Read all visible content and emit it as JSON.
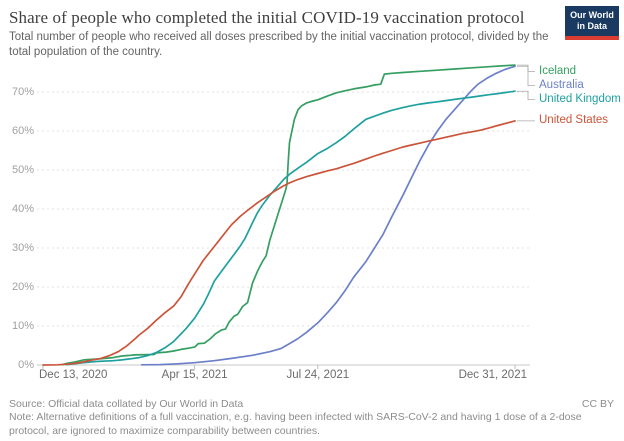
{
  "header": {
    "title": "Share of people who completed the initial COVID-19 vaccination protocol",
    "subtitle": "Total number of people who received all doses prescribed by the initial vaccination protocol, divided by the total population of the country.",
    "logo": {
      "line1": "Our World",
      "line2": "in Data",
      "bg": "#1a3a62",
      "stripe": "#dc3d33"
    }
  },
  "chart_data": {
    "type": "line",
    "title": "Share of people who completed the initial COVID-19 vaccination protocol",
    "x_unit": "days since Dec 13, 2020",
    "x_axis": {
      "ticks": [
        {
          "label": "Dec 13, 2020",
          "day": 0,
          "align": "start"
        },
        {
          "label": "Apr 15, 2021",
          "day": 123,
          "align": "middle"
        },
        {
          "label": "Jul 24, 2021",
          "day": 223,
          "align": "middle"
        },
        {
          "label": "Dec 31, 2021",
          "day": 383,
          "align": "end"
        }
      ],
      "domain_days": [
        0,
        383
      ]
    },
    "y_axis": {
      "min": 0,
      "max": 70,
      "format": "percent",
      "gridlines": "dashed",
      "ticks": [
        {
          "label": "0%",
          "value": 0
        },
        {
          "label": "10%",
          "value": 10
        },
        {
          "label": "20%",
          "value": 20
        },
        {
          "label": "30%",
          "value": 30
        },
        {
          "label": "40%",
          "value": 40
        },
        {
          "label": "50%",
          "value": 50
        },
        {
          "label": "60%",
          "value": 60
        },
        {
          "label": "70%",
          "value": 70
        }
      ]
    },
    "legend_position": "right",
    "series": [
      {
        "name": "Iceland",
        "color": "#359e61",
        "points": [
          [
            16,
            0.1
          ],
          [
            19,
            0.4
          ],
          [
            26,
            0.8
          ],
          [
            33,
            1.3
          ],
          [
            43,
            1.5
          ],
          [
            50,
            1.7
          ],
          [
            57,
            1.9
          ],
          [
            64,
            2.3
          ],
          [
            71,
            2.5
          ],
          [
            74,
            2.6
          ],
          [
            90,
            2.7
          ],
          [
            92,
            3.1
          ],
          [
            100,
            3.3
          ],
          [
            106,
            3.6
          ],
          [
            112,
            4.0
          ],
          [
            118,
            4.3
          ],
          [
            123,
            4.6
          ],
          [
            126,
            5.5
          ],
          [
            131,
            5.6
          ],
          [
            136,
            6.8
          ],
          [
            140,
            8.0
          ],
          [
            145,
            9.0
          ],
          [
            148,
            9.2
          ],
          [
            151,
            11.0
          ],
          [
            155,
            12.5
          ],
          [
            158,
            13.0
          ],
          [
            162,
            15.0
          ],
          [
            166,
            16.0
          ],
          [
            170,
            21.0
          ],
          [
            174,
            24.0
          ],
          [
            178,
            26.5
          ],
          [
            181,
            28.0
          ],
          [
            184,
            32.0
          ],
          [
            188,
            36.0
          ],
          [
            191,
            39.0
          ],
          [
            194,
            42.0
          ],
          [
            197,
            45.0
          ],
          [
            198,
            46.5
          ],
          [
            199,
            52.0
          ],
          [
            200,
            57.0
          ],
          [
            202,
            60.0
          ],
          [
            204,
            63.0
          ],
          [
            207,
            65.5
          ],
          [
            210,
            66.5
          ],
          [
            214,
            67.2
          ],
          [
            219,
            67.7
          ],
          [
            223,
            68.0
          ],
          [
            231,
            69.0
          ],
          [
            238,
            69.8
          ],
          [
            245,
            70.3
          ],
          [
            252,
            70.8
          ],
          [
            262,
            71.3
          ],
          [
            269,
            71.8
          ],
          [
            274,
            72.0
          ],
          [
            277,
            74.6
          ],
          [
            283,
            74.8
          ],
          [
            292,
            75.0
          ],
          [
            306,
            75.3
          ],
          [
            320,
            75.6
          ],
          [
            334,
            75.9
          ],
          [
            348,
            76.2
          ],
          [
            362,
            76.5
          ],
          [
            372,
            76.7
          ],
          [
            383,
            76.9
          ]
        ]
      },
      {
        "name": "Australia",
        "color": "#6b80c9",
        "points": [
          [
            80,
            0.05
          ],
          [
            95,
            0.1
          ],
          [
            109,
            0.3
          ],
          [
            123,
            0.6
          ],
          [
            139,
            1.1
          ],
          [
            153,
            1.7
          ],
          [
            170,
            2.5
          ],
          [
            184,
            3.4
          ],
          [
            193,
            4.2
          ],
          [
            200,
            5.5
          ],
          [
            207,
            6.8
          ],
          [
            214,
            8.4
          ],
          [
            223,
            10.8
          ],
          [
            231,
            13.5
          ],
          [
            238,
            16.0
          ],
          [
            245,
            19.0
          ],
          [
            252,
            22.5
          ],
          [
            262,
            26.5
          ],
          [
            269,
            30.0
          ],
          [
            276,
            33.5
          ],
          [
            283,
            38.0
          ],
          [
            292,
            43.5
          ],
          [
            299,
            48.0
          ],
          [
            306,
            52.5
          ],
          [
            313,
            56.5
          ],
          [
            320,
            60.0
          ],
          [
            327,
            63.0
          ],
          [
            334,
            65.5
          ],
          [
            341,
            68.0
          ],
          [
            348,
            70.5
          ],
          [
            353,
            72.0
          ],
          [
            360,
            73.5
          ],
          [
            367,
            74.7
          ],
          [
            375,
            75.8
          ],
          [
            383,
            76.6
          ]
        ]
      },
      {
        "name": "United Kingdom",
        "color": "#1fa0a0",
        "points": [
          [
            19,
            0.1
          ],
          [
            33,
            0.6
          ],
          [
            43,
            0.9
          ],
          [
            57,
            1.1
          ],
          [
            64,
            1.3
          ],
          [
            71,
            1.6
          ],
          [
            78,
            1.9
          ],
          [
            85,
            2.4
          ],
          [
            92,
            3.2
          ],
          [
            99,
            4.4
          ],
          [
            106,
            6.0
          ],
          [
            109,
            7.0
          ],
          [
            116,
            9.3
          ],
          [
            123,
            12.0
          ],
          [
            130,
            15.5
          ],
          [
            134,
            18.0
          ],
          [
            139,
            21.5
          ],
          [
            146,
            24.5
          ],
          [
            153,
            27.5
          ],
          [
            160,
            30.5
          ],
          [
            164,
            32.5
          ],
          [
            170,
            36.5
          ],
          [
            174,
            39.0
          ],
          [
            178,
            41.0
          ],
          [
            184,
            43.5
          ],
          [
            191,
            46.0
          ],
          [
            196,
            47.8
          ],
          [
            200,
            48.9
          ],
          [
            207,
            50.5
          ],
          [
            214,
            52.0
          ],
          [
            223,
            54.2
          ],
          [
            231,
            55.6
          ],
          [
            238,
            57.0
          ],
          [
            245,
            58.6
          ],
          [
            252,
            60.5
          ],
          [
            262,
            63.0
          ],
          [
            269,
            63.8
          ],
          [
            276,
            64.6
          ],
          [
            283,
            65.3
          ],
          [
            292,
            66.0
          ],
          [
            299,
            66.5
          ],
          [
            306,
            66.9
          ],
          [
            313,
            67.2
          ],
          [
            320,
            67.5
          ],
          [
            327,
            67.8
          ],
          [
            334,
            68.1
          ],
          [
            341,
            68.4
          ],
          [
            348,
            68.7
          ],
          [
            355,
            69.0
          ],
          [
            362,
            69.3
          ],
          [
            369,
            69.6
          ],
          [
            376,
            69.9
          ],
          [
            383,
            70.2
          ]
        ]
      },
      {
        "name": "United States",
        "color": "#cb5438",
        "points": [
          [
            0,
            0
          ],
          [
            12,
            0.05
          ],
          [
            19,
            0.2
          ],
          [
            26,
            0.4
          ],
          [
            33,
            0.8
          ],
          [
            40,
            1.3
          ],
          [
            47,
            1.7
          ],
          [
            54,
            2.4
          ],
          [
            61,
            3.4
          ],
          [
            68,
            4.9
          ],
          [
            75,
            6.8
          ],
          [
            78,
            7.7
          ],
          [
            85,
            9.4
          ],
          [
            92,
            11.5
          ],
          [
            99,
            13.4
          ],
          [
            106,
            15.1
          ],
          [
            112,
            17.5
          ],
          [
            118,
            20.8
          ],
          [
            123,
            23.3
          ],
          [
            130,
            26.8
          ],
          [
            136,
            29.2
          ],
          [
            142,
            31.6
          ],
          [
            148,
            34.0
          ],
          [
            153,
            36.0
          ],
          [
            160,
            38.1
          ],
          [
            167,
            39.9
          ],
          [
            174,
            41.6
          ],
          [
            181,
            43.1
          ],
          [
            188,
            44.6
          ],
          [
            195,
            45.9
          ],
          [
            200,
            46.7
          ],
          [
            207,
            47.6
          ],
          [
            214,
            48.3
          ],
          [
            223,
            49.1
          ],
          [
            231,
            49.8
          ],
          [
            238,
            50.3
          ],
          [
            245,
            51.0
          ],
          [
            252,
            51.7
          ],
          [
            262,
            52.8
          ],
          [
            269,
            53.6
          ],
          [
            276,
            54.3
          ],
          [
            283,
            55.0
          ],
          [
            292,
            55.9
          ],
          [
            299,
            56.4
          ],
          [
            306,
            56.9
          ],
          [
            313,
            57.4
          ],
          [
            320,
            57.9
          ],
          [
            327,
            58.4
          ],
          [
            334,
            58.9
          ],
          [
            341,
            59.4
          ],
          [
            348,
            59.8
          ],
          [
            355,
            60.2
          ],
          [
            362,
            60.8
          ],
          [
            369,
            61.4
          ],
          [
            376,
            62.0
          ],
          [
            383,
            62.6
          ]
        ]
      }
    ]
  },
  "footer": {
    "source": "Source: Official data collated by Our World in Data",
    "note": "Note: Alternative definitions of a full vaccination, e.g. having been infected with SARS-CoV-2 and having 1 dose of a 2-dose protocol, are ignored to maximize comparability between countries.",
    "license": "CC BY"
  }
}
